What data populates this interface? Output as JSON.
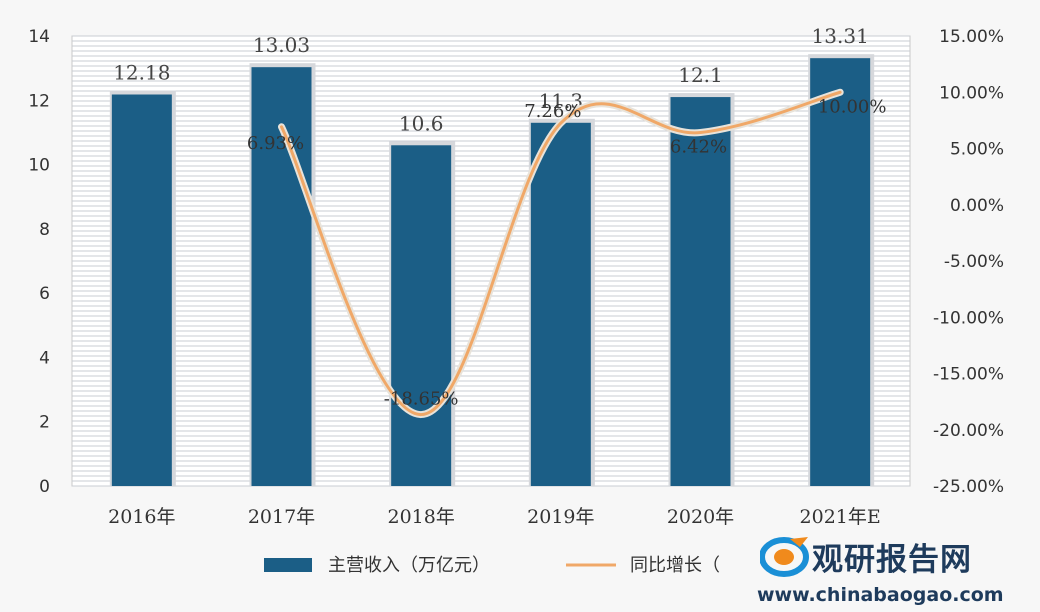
{
  "chart_data": {
    "type": "bar",
    "categories": [
      "2016年",
      "2017年",
      "2018年",
      "2019年",
      "2020年",
      "2021年E"
    ],
    "series": [
      {
        "name": "主营收入（万亿元）",
        "type": "bar",
        "axis": "left",
        "values": [
          12.18,
          13.03,
          10.6,
          11.3,
          12.1,
          13.31
        ],
        "labels": [
          "12.18",
          "13.03",
          "10.6",
          "11.3",
          "12.1",
          "13.31"
        ],
        "color": "#1b5e86"
      },
      {
        "name": "同比增长（%）",
        "type": "line",
        "axis": "right",
        "values": [
          null,
          6.93,
          -18.65,
          7.26,
          6.42,
          10.0
        ],
        "labels": [
          "",
          "6.93%",
          "-18.65%",
          "7.26%",
          "6.42%",
          "10.00%"
        ],
        "color": "#f0a868"
      }
    ],
    "y_left": {
      "min": 0,
      "max": 14,
      "ticks": [
        "0",
        "2",
        "4",
        "6",
        "8",
        "10",
        "12",
        "14"
      ]
    },
    "y_right": {
      "min": -25,
      "max": 15,
      "ticks": [
        "-25.00%",
        "-20.00%",
        "-15.00%",
        "-10.00%",
        "-5.00%",
        "0.00%",
        "5.00%",
        "10.00%",
        "15.00%"
      ]
    },
    "grid": true,
    "legend_position": "bottom",
    "legend_visible_text": [
      "主营收入（万亿元）",
      "同比增长（"
    ]
  },
  "watermark": {
    "brand": "观研报告网",
    "site": "www.chinabaogao.com"
  }
}
